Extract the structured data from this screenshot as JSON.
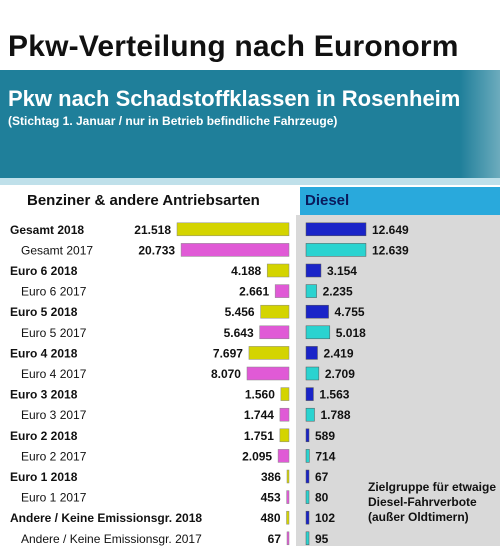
{
  "header": {
    "title": "Pkw-Verteilung nach Euronorm",
    "subtitle": "Pkw nach Schadstoffklassen in Rosenheim",
    "note": "(Stichtag 1. Januar / nur in Betrieb befindliche Fahrzeuge)"
  },
  "footnote": "Zielgruppe für etwaige Diesel-Fahrverbote (außer Oldtimern)",
  "colors": {
    "benzin_2018": "#d4d400",
    "benzin_2017": "#e05ad6",
    "diesel_2018": "#1a24c8",
    "diesel_2017": "#2ad3d0",
    "header_teal": "#1f7f9a",
    "diesel_header": "#29a9dc"
  },
  "chart_data": {
    "type": "bar",
    "orientation": "horizontal",
    "categories": [
      "Gesamt 2018",
      "Gesamt 2017",
      "Euro 6 2018",
      "Euro 6 2017",
      "Euro 5 2018",
      "Euro 5 2017",
      "Euro 4 2018",
      "Euro 4 2017",
      "Euro 3 2018",
      "Euro 3 2017",
      "Euro 2 2018",
      "Euro 2 2017",
      "Euro 1 2018",
      "Euro 1 2017",
      "Andere / Keine Emissionsgr. 2018",
      "Andere / Keine Emissionsgr. 2017"
    ],
    "series": [
      {
        "name": "Benziner & andere Antriebsarten",
        "values": [
          21518,
          20733,
          4188,
          2661,
          5456,
          5643,
          7697,
          8070,
          1560,
          1744,
          1751,
          2095,
          386,
          453,
          480,
          67
        ],
        "labels": [
          "21.518",
          "20.733",
          "4.188",
          "2.661",
          "5.456",
          "5.643",
          "7.697",
          "8.070",
          "1.560",
          "1.744",
          "1.751",
          "2.095",
          "386",
          "453",
          "480",
          "67"
        ]
      },
      {
        "name": "Diesel",
        "values": [
          12649,
          12639,
          3154,
          2235,
          4755,
          5018,
          2419,
          2709,
          1563,
          1788,
          589,
          714,
          67,
          80,
          102,
          95
        ],
        "labels": [
          "12.649",
          "12.639",
          "3.154",
          "2.235",
          "4.755",
          "5.018",
          "2.419",
          "2.709",
          "1.563",
          "1.788",
          "589",
          "714",
          "67",
          "80",
          "102",
          "95"
        ]
      }
    ]
  }
}
